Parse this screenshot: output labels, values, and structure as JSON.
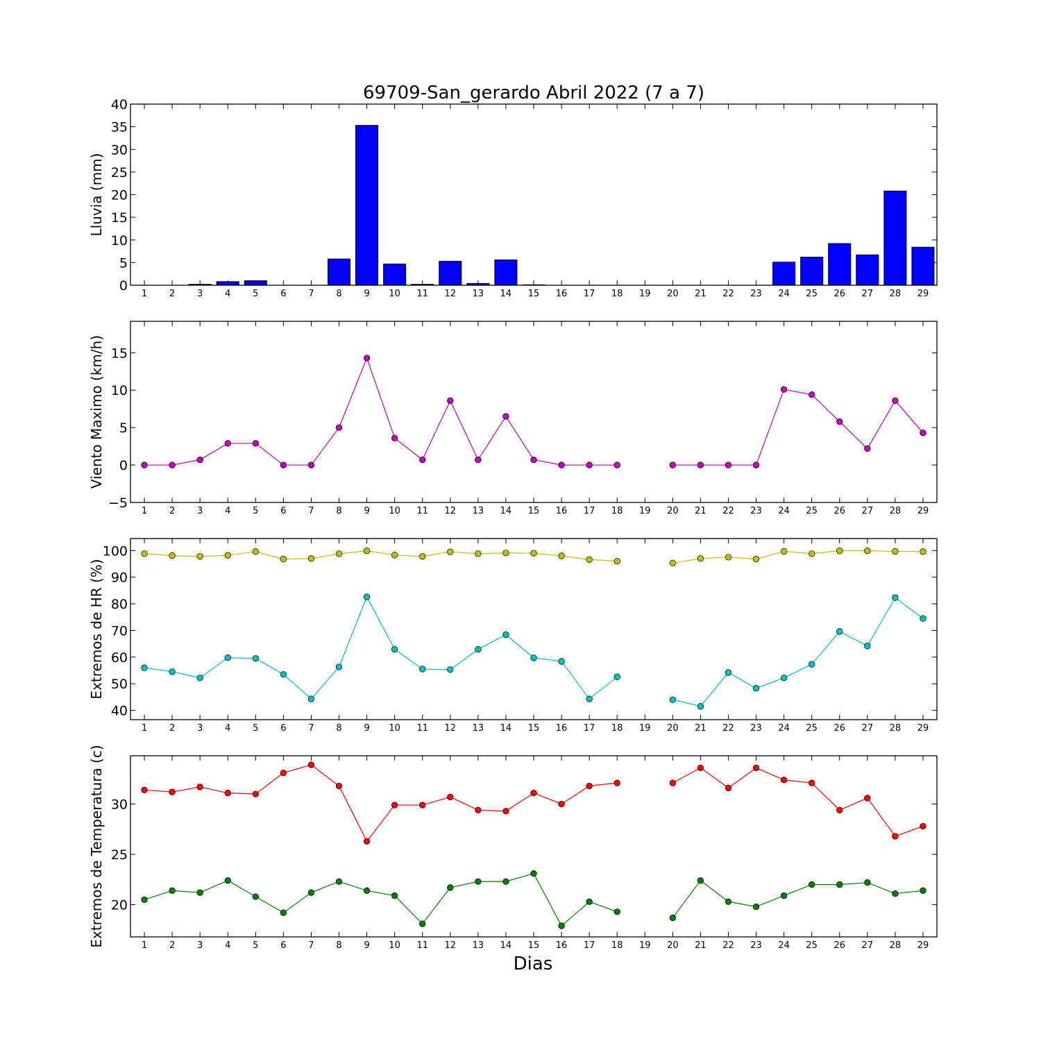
{
  "title": "69709-San_gerardo Abril 2022  (7 a 7)",
  "xlabel": "Dias",
  "chart_data": [
    {
      "type": "bar",
      "ylabel": "Lluvia (mm)",
      "ylim": [
        0,
        40
      ],
      "yticks": [
        "0",
        "5",
        "10",
        "15",
        "20",
        "25",
        "30",
        "35",
        "40"
      ],
      "categories": [
        "1",
        "2",
        "3",
        "4",
        "5",
        "6",
        "7",
        "8",
        "9",
        "10",
        "11",
        "12",
        "13",
        "14",
        "15",
        "16",
        "17",
        "18",
        "19",
        "20",
        "21",
        "22",
        "23",
        "24",
        "25",
        "26",
        "27",
        "28",
        "29"
      ],
      "values": [
        0,
        0,
        0.2,
        0.8,
        1.0,
        0,
        0,
        5.8,
        35.3,
        4.7,
        0.2,
        5.3,
        0.4,
        5.6,
        0.1,
        0,
        0,
        0,
        0,
        0,
        0,
        0,
        0,
        5.1,
        6.2,
        9.2,
        6.7,
        20.8,
        8.4
      ],
      "color": "#0000ff"
    },
    {
      "type": "line",
      "ylabel": "Viento Maximo (km/h)",
      "ylim": [
        -5,
        19.2
      ],
      "yticks": [
        "−5",
        "0",
        "5",
        "10",
        "15"
      ],
      "categories": [
        "1",
        "2",
        "3",
        "4",
        "5",
        "6",
        "7",
        "8",
        "9",
        "10",
        "11",
        "12",
        "13",
        "14",
        "15",
        "16",
        "17",
        "18",
        "19",
        "20",
        "21",
        "22",
        "23",
        "24",
        "25",
        "26",
        "27",
        "28",
        "29"
      ],
      "series": [
        {
          "color": "#bf00bf",
          "values": [
            0,
            0,
            0.7,
            2.9,
            2.9,
            0,
            0,
            5.0,
            14.3,
            3.6,
            0.7,
            8.6,
            0.7,
            6.5,
            0.7,
            0,
            0,
            0,
            null,
            0,
            0,
            0,
            0,
            10.1,
            9.4,
            5.8,
            2.2,
            8.6,
            4.3
          ]
        }
      ]
    },
    {
      "type": "line",
      "ylabel": "Extremos de HR (%)",
      "ylim": [
        36.5,
        104.5
      ],
      "yticks": [
        "40",
        "50",
        "60",
        "70",
        "80",
        "90",
        "100"
      ],
      "categories": [
        "1",
        "2",
        "3",
        "4",
        "5",
        "6",
        "7",
        "8",
        "9",
        "10",
        "11",
        "12",
        "13",
        "14",
        "15",
        "16",
        "17",
        "18",
        "19",
        "20",
        "21",
        "22",
        "23",
        "24",
        "25",
        "26",
        "27",
        "28",
        "29"
      ],
      "series": [
        {
          "color": "#bfbf00",
          "values": [
            98.8,
            98.1,
            97.8,
            98.2,
            99.6,
            96.8,
            97.0,
            98.8,
            99.9,
            98.3,
            97.8,
            99.5,
            98.8,
            99.1,
            99.0,
            98.0,
            96.6,
            96.0,
            null,
            95.3,
            97.0,
            97.5,
            96.8,
            99.7,
            98.8,
            99.9,
            99.9,
            99.7,
            99.6
          ]
        },
        {
          "color": "#00bfbf",
          "values": [
            56.0,
            54.5,
            52.2,
            59.8,
            59.5,
            53.5,
            44.3,
            56.3,
            82.6,
            62.9,
            55.5,
            55.3,
            62.9,
            68.4,
            59.7,
            58.4,
            44.3,
            52.6,
            null,
            44.0,
            41.5,
            54.2,
            48.3,
            52.2,
            57.3,
            69.6,
            64.2,
            82.3,
            74.5
          ]
        }
      ]
    },
    {
      "type": "line",
      "ylabel": "Extremos de Temperatura (c)",
      "ylim": [
        16.8,
        34.8
      ],
      "yticks": [
        "20",
        "25",
        "30"
      ],
      "categories": [
        "1",
        "2",
        "3",
        "4",
        "5",
        "6",
        "7",
        "8",
        "9",
        "10",
        "11",
        "12",
        "13",
        "14",
        "15",
        "16",
        "17",
        "18",
        "19",
        "20",
        "21",
        "22",
        "23",
        "24",
        "25",
        "26",
        "27",
        "28",
        "29"
      ],
      "series": [
        {
          "color": "#ff0000",
          "values": [
            31.4,
            31.2,
            31.7,
            31.1,
            31.0,
            33.1,
            33.9,
            31.8,
            26.3,
            29.9,
            29.9,
            30.7,
            29.4,
            29.3,
            31.1,
            30.0,
            31.8,
            32.1,
            null,
            32.1,
            33.6,
            31.6,
            33.6,
            32.4,
            32.1,
            29.4,
            30.6,
            26.8,
            27.8
          ]
        },
        {
          "color": "#007f00",
          "values": [
            20.5,
            21.4,
            21.2,
            22.4,
            20.8,
            19.2,
            21.2,
            22.3,
            21.4,
            20.9,
            18.1,
            21.7,
            22.3,
            22.3,
            23.1,
            17.9,
            20.3,
            19.3,
            null,
            18.7,
            22.4,
            20.3,
            19.8,
            20.9,
            22.0,
            22.0,
            22.2,
            21.1,
            21.4
          ]
        }
      ]
    }
  ]
}
